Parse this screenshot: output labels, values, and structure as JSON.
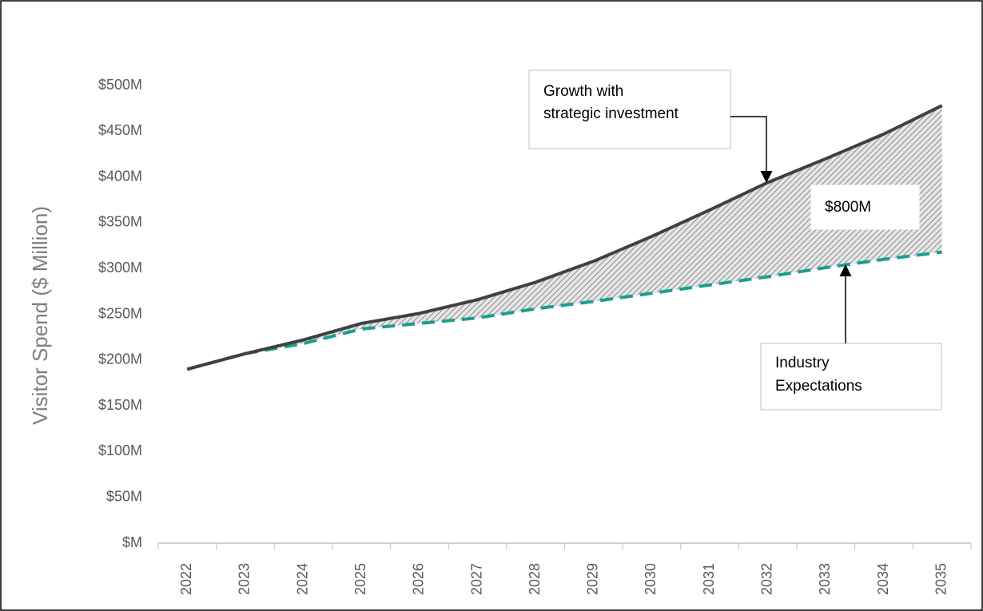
{
  "chart_data": {
    "type": "line",
    "y_label": "Visitor Spend ($ Million)",
    "categories": [
      "2022",
      "2023",
      "2024",
      "2025",
      "2026",
      "2027",
      "2028",
      "2029",
      "2030",
      "2031",
      "2032",
      "2033",
      "2034",
      "2035"
    ],
    "series": [
      {
        "name": "Growth with strategic investment",
        "color": "#404040",
        "dashed": false,
        "values": [
          190,
          207,
          222,
          240,
          251,
          266,
          285,
          308,
          335,
          364,
          394,
          420,
          447,
          478
        ]
      },
      {
        "name": "Industry Expectations",
        "color": "#1a9e8f",
        "dashed": true,
        "values": [
          190,
          207,
          218,
          234,
          240,
          246,
          256,
          264,
          273,
          282,
          291,
          301,
          310,
          318
        ]
      }
    ],
    "ylim": [
      0,
      500
    ],
    "yticks": [
      {
        "value": 0,
        "label": "$M"
      },
      {
        "value": 50,
        "label": "$50M"
      },
      {
        "value": 100,
        "label": "$100M"
      },
      {
        "value": 150,
        "label": "$150M"
      },
      {
        "value": 200,
        "label": "$200M"
      },
      {
        "value": 250,
        "label": "$250M"
      },
      {
        "value": 300,
        "label": "$300M"
      },
      {
        "value": 350,
        "label": "$350M"
      },
      {
        "value": 400,
        "label": "$400M"
      },
      {
        "value": 450,
        "label": "$450M"
      },
      {
        "value": 500,
        "label": "$500M"
      }
    ],
    "annotations": [
      {
        "text": [
          "Growth with",
          "strategic investment"
        ]
      },
      {
        "text": [
          "$800M"
        ]
      },
      {
        "text": [
          "Industry",
          "Expectations"
        ]
      }
    ],
    "shade_between": true
  }
}
